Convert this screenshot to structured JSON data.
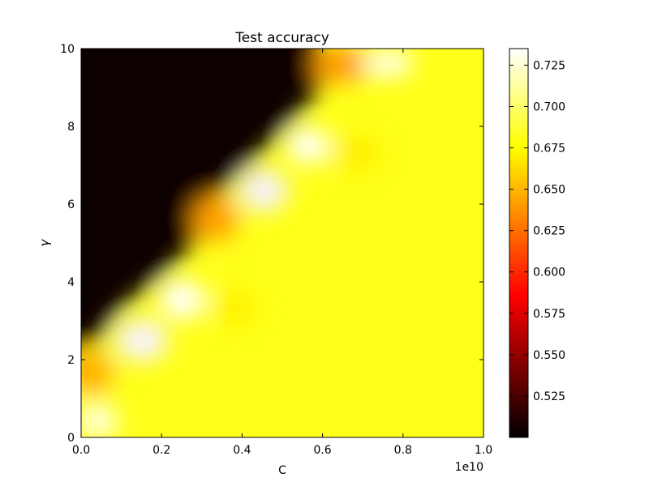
{
  "chart_data": {
    "type": "heatmap",
    "title": "Test accuracy",
    "xlabel": "C",
    "ylabel": "γ",
    "x_offset_label": "1e10",
    "xlim": [
      0.0,
      1.0
    ],
    "ylim": [
      0,
      10
    ],
    "x_ticks": [
      "0.0",
      "0.2",
      "0.4",
      "0.6",
      "0.8",
      "1.0"
    ],
    "y_ticks": [
      "0",
      "2",
      "4",
      "6",
      "8",
      "10"
    ],
    "colormap": "hot",
    "colorbar": {
      "vmin": 0.5,
      "vmax": 0.735,
      "ticks": [
        "0.525",
        "0.550",
        "0.575",
        "0.600",
        "0.625",
        "0.650",
        "0.675",
        "0.700",
        "0.725"
      ],
      "tick_values": [
        0.525,
        0.55,
        0.575,
        0.6,
        0.625,
        0.65,
        0.675,
        0.7,
        0.725
      ],
      "colors": [
        "#000000",
        "#ff0000",
        "#ffff00",
        "#ffffff"
      ]
    },
    "grid": false,
    "description_values": {
      "low_region_value": 0.5,
      "high_region_value": 0.68,
      "boundary_peak_value": 0.73
    }
  }
}
